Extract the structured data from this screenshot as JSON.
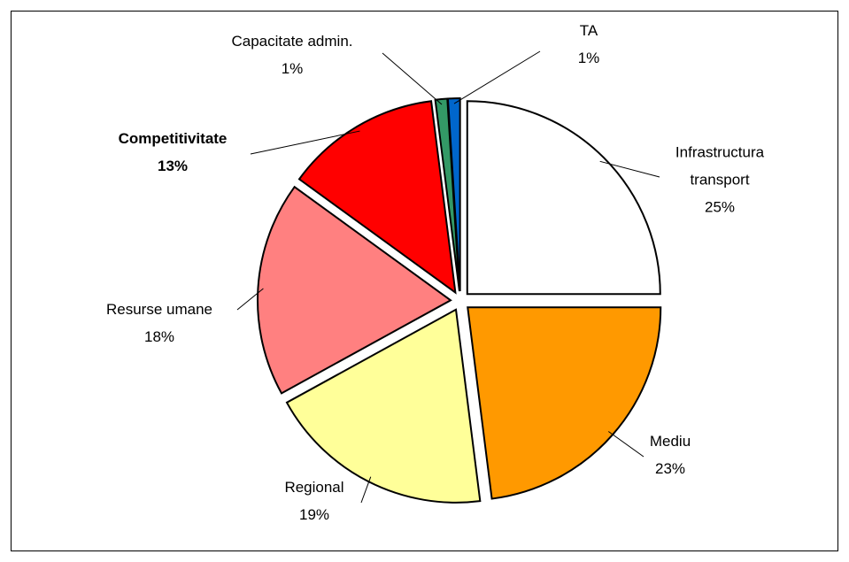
{
  "chart_data": {
    "type": "pie",
    "categories": [
      "Infrastructura transport",
      "Mediu",
      "Regional",
      "Resurse umane",
      "Competitivitate",
      "Capacitate admin.",
      "TA"
    ],
    "values": [
      25,
      23,
      19,
      18,
      13,
      1,
      1
    ],
    "value_labels": [
      "25%",
      "23%",
      "19%",
      "18%",
      "13%",
      "1%",
      "1%"
    ],
    "colors": [
      "#FFFFFF",
      "#FF9900",
      "#FFFF99",
      "#FF8080",
      "#FF0000",
      "#339966",
      "#0066CC"
    ],
    "label_bold": [
      false,
      false,
      false,
      false,
      true,
      false,
      false
    ]
  }
}
